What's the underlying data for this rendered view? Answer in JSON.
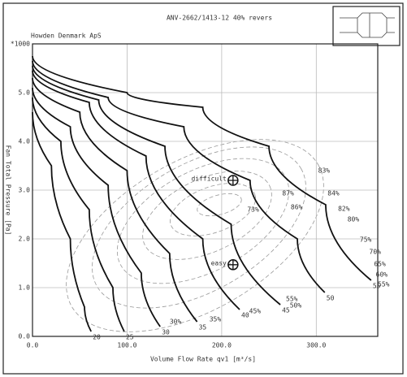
{
  "chart_data": {
    "type": "line",
    "title": "ANV-2662/1413-12 40% revers",
    "subtitle": "Howden Denmark ApS",
    "x_label": "Volume Flow Rate qv1 [m³/s]",
    "y_label": "Fan Total Pressure [Pa]",
    "y_multiplier": "*1000",
    "xlim": [
      0,
      365
    ],
    "ylim": [
      0,
      6
    ],
    "xticks": [
      {
        "value": 0,
        "label": "0.0"
      },
      {
        "value": 100,
        "label": "100.0"
      },
      {
        "value": 200,
        "label": "200.0"
      },
      {
        "value": 300,
        "label": "300.0"
      }
    ],
    "yticks": [
      {
        "value": 0,
        "label": "0.0"
      },
      {
        "value": 1,
        "label": "1.0"
      },
      {
        "value": 2,
        "label": "2.0"
      },
      {
        "value": 3,
        "label": "3.0"
      },
      {
        "value": 4,
        "label": "4.0"
      },
      {
        "value": 5,
        "label": "5.0"
      }
    ],
    "grid": true,
    "series": [
      {
        "name": "20",
        "color": "#111",
        "x": [
          0,
          20,
          40,
          55,
          62
        ],
        "values": [
          4.6,
          3.5,
          2.0,
          0.6,
          0.1
        ]
      },
      {
        "name": "25",
        "color": "#111",
        "x": [
          0,
          30,
          60,
          85,
          97
        ],
        "values": [
          4.9,
          4.0,
          2.6,
          1.0,
          0.1
        ]
      },
      {
        "name": "30",
        "color": "#111",
        "x": [
          0,
          40,
          80,
          115,
          135
        ],
        "values": [
          5.1,
          4.3,
          3.1,
          1.3,
          0.2
        ]
      },
      {
        "name": "35",
        "color": "#111",
        "x": [
          0,
          50,
          100,
          145,
          174
        ],
        "values": [
          5.3,
          4.6,
          3.4,
          1.7,
          0.3
        ]
      },
      {
        "name": "40",
        "color": "#111",
        "x": [
          0,
          60,
          120,
          180,
          219
        ],
        "values": [
          5.45,
          4.8,
          3.7,
          2.0,
          0.55
        ]
      },
      {
        "name": "45",
        "color": "#111",
        "x": [
          0,
          70,
          140,
          210,
          262
        ],
        "values": [
          5.55,
          4.85,
          3.9,
          2.3,
          0.65
        ]
      },
      {
        "name": "50",
        "color": "#111",
        "x": [
          0,
          80,
          160,
          230,
          280,
          309
        ],
        "values": [
          5.65,
          4.9,
          4.3,
          3.2,
          2.0,
          0.9
        ]
      },
      {
        "name": "55",
        "color": "#111",
        "x": [
          0,
          100,
          180,
          250,
          310,
          358
        ],
        "values": [
          5.75,
          5.0,
          4.7,
          3.9,
          2.7,
          1.15
        ]
      }
    ],
    "efficiency_labels": [
      {
        "label": "83%",
        "x": 302,
        "y": 3.4
      },
      {
        "label": "87%",
        "x": 264,
        "y": 2.93
      },
      {
        "label": "84%",
        "x": 312,
        "y": 2.93
      },
      {
        "label": "86%",
        "x": 273,
        "y": 2.65
      },
      {
        "label": "73%",
        "x": 227,
        "y": 2.6
      },
      {
        "label": "82%",
        "x": 323,
        "y": 2.62
      },
      {
        "label": "80%",
        "x": 333,
        "y": 2.4
      },
      {
        "label": "75%",
        "x": 346,
        "y": 1.98
      },
      {
        "label": "70%",
        "x": 356,
        "y": 1.73
      },
      {
        "label": "65%",
        "x": 361,
        "y": 1.48
      },
      {
        "label": "60%",
        "x": 363,
        "y": 1.27
      },
      {
        "label": "55%",
        "x": 365,
        "y": 1.07
      },
      {
        "label": "55%",
        "x": 268,
        "y": 0.77
      },
      {
        "label": "50%",
        "x": 272,
        "y": 0.63
      },
      {
        "label": "45%",
        "x": 229,
        "y": 0.52
      },
      {
        "label": "35%",
        "x": 187,
        "y": 0.35
      },
      {
        "label": "30%",
        "x": 145,
        "y": 0.3
      }
    ],
    "points": [
      {
        "label": "difficult",
        "x": 212,
        "y": 3.2
      },
      {
        "label": "easy",
        "x": 212,
        "y": 1.47
      }
    ]
  }
}
